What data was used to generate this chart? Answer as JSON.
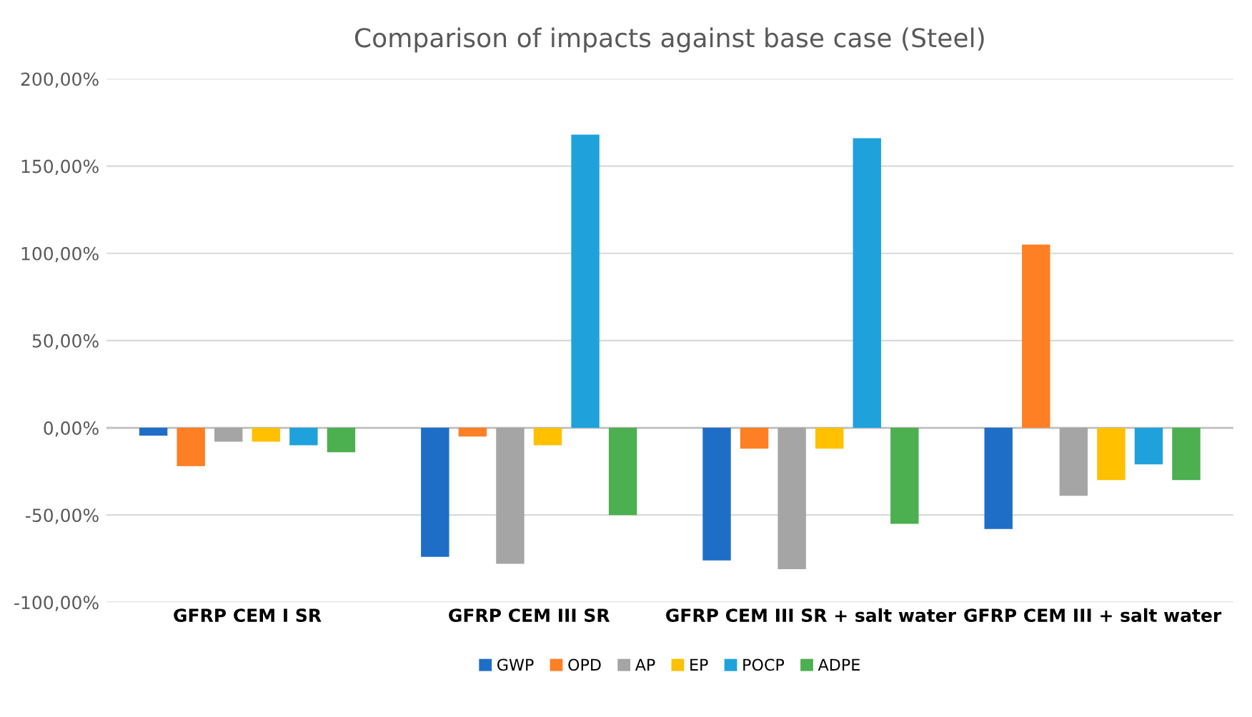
{
  "chart_data": {
    "type": "bar",
    "title": "Comparison of impacts against base case (Steel)",
    "categories": [
      "GFRP CEM I SR",
      "GFRP CEM III SR",
      "GFRP CEM III SR + salt water",
      "GFRP CEM III + salt water"
    ],
    "series": [
      {
        "name": "GWP",
        "color": "#1e6ec8",
        "values": [
          -4.5,
          -74,
          -76,
          -58
        ]
      },
      {
        "name": "OPD",
        "color": "#ff7f24",
        "values": [
          -22,
          -5,
          -12,
          105
        ]
      },
      {
        "name": "AP",
        "color": "#a5a5a5",
        "values": [
          -8,
          -78,
          -81,
          -39
        ]
      },
      {
        "name": "EP",
        "color": "#ffc000",
        "values": [
          -8,
          -10,
          -12,
          -30
        ]
      },
      {
        "name": "POCP",
        "color": "#1fa2dc",
        "values": [
          -10,
          168,
          166,
          -21
        ]
      },
      {
        "name": "ADPE",
        "color": "#4caf50",
        "values": [
          -14,
          -50,
          -55,
          -30
        ]
      }
    ],
    "ylim": [
      -100,
      200
    ],
    "yticks": [
      {
        "value": -100,
        "label": "-100,00%"
      },
      {
        "value": -50,
        "label": "-50,00%"
      },
      {
        "value": 0,
        "label": "0,00%"
      },
      {
        "value": 50,
        "label": "50,00%"
      },
      {
        "value": 100,
        "label": "100,00%"
      },
      {
        "value": 150,
        "label": "150,00%"
      },
      {
        "value": 200,
        "label": "200,00%"
      }
    ],
    "grid": "y",
    "legend": "bottom"
  }
}
